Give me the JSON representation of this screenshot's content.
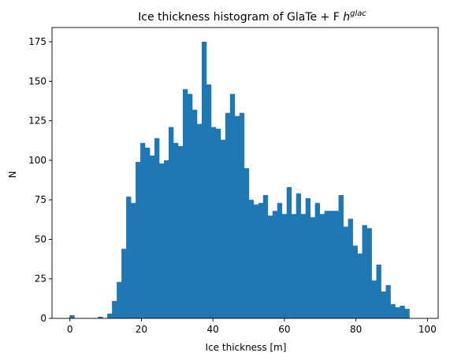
{
  "chart_data": {
    "type": "bar",
    "title": "Ice thickness histogram of GlaTe + F ",
    "title_math": "h",
    "title_superscript": "glac",
    "xlabel": "Ice thickness [m]",
    "ylabel": "N",
    "xlim": [
      -5,
      103
    ],
    "ylim": [
      0,
      184
    ],
    "xticks": [
      0,
      20,
      40,
      60,
      80,
      100
    ],
    "yticks": [
      0,
      25,
      50,
      75,
      100,
      125,
      150,
      175
    ],
    "bar_color": "#1f77b4",
    "grid": false,
    "legend": "none",
    "bins": {
      "x_start": -0.1,
      "width": 1.32,
      "values": [
        2,
        0,
        0,
        0,
        0,
        0,
        1,
        0,
        3,
        11,
        23,
        44,
        77,
        73,
        99,
        111,
        108,
        103,
        114,
        98,
        100,
        121,
        111,
        109,
        145,
        142,
        132,
        123,
        175,
        148,
        121,
        120,
        113,
        130,
        142,
        128,
        130,
        95,
        75,
        72,
        73,
        78,
        65,
        68,
        73,
        66,
        83,
        66,
        79,
        66,
        76,
        64,
        73,
        66,
        68,
        68,
        68,
        78,
        58,
        63,
        46,
        41,
        59,
        57,
        24,
        34,
        17,
        21,
        9,
        7,
        8,
        6
      ]
    }
  }
}
